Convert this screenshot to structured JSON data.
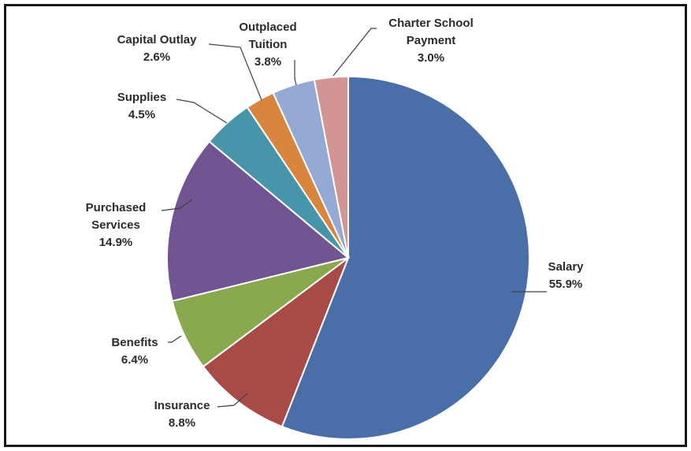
{
  "chart_data": {
    "type": "pie",
    "start_angle_deg": 0,
    "direction": "clockwise",
    "slices": [
      {
        "label": "Salary",
        "value": 55.9,
        "display": "55.9%",
        "color": "#4a6ea8"
      },
      {
        "label": "Insurance",
        "value": 8.8,
        "display": "8.8%",
        "color": "#a84a46"
      },
      {
        "label": "Benefits",
        "value": 6.4,
        "display": "6.4%",
        "color": "#8aa84e"
      },
      {
        "label": "Purchased Services",
        "value": 14.9,
        "display": "14.9%",
        "color": "#705592"
      },
      {
        "label": "Supplies",
        "value": 4.5,
        "display": "4.5%",
        "color": "#4795aa"
      },
      {
        "label": "Capital Outlay",
        "value": 2.6,
        "display": "2.6%",
        "color": "#d9853d"
      },
      {
        "label": "Outplaced Tuition",
        "value": 3.8,
        "display": "3.8%",
        "color": "#94a9d3"
      },
      {
        "label": "Charter School Payment",
        "value": 3.0,
        "display": "3.0%",
        "color": "#d29593"
      }
    ],
    "label_lines": [
      {
        "slice": 0,
        "lines": [
          "Salary",
          "55.9%"
        ]
      },
      {
        "slice": 1,
        "lines": [
          "Insurance",
          "8.8%"
        ]
      },
      {
        "slice": 2,
        "lines": [
          "Benefits",
          "6.4%"
        ]
      },
      {
        "slice": 3,
        "lines": [
          "Purchased",
          "Services",
          "14.9%"
        ]
      },
      {
        "slice": 4,
        "lines": [
          "Supplies",
          "4.5%"
        ]
      },
      {
        "slice": 5,
        "lines": [
          "Capital Outlay",
          "2.6%"
        ]
      },
      {
        "slice": 6,
        "lines": [
          "Outplaced",
          "Tuition",
          "3.8%"
        ]
      },
      {
        "slice": 7,
        "lines": [
          "Charter School",
          "Payment",
          "3.0%"
        ]
      }
    ]
  }
}
